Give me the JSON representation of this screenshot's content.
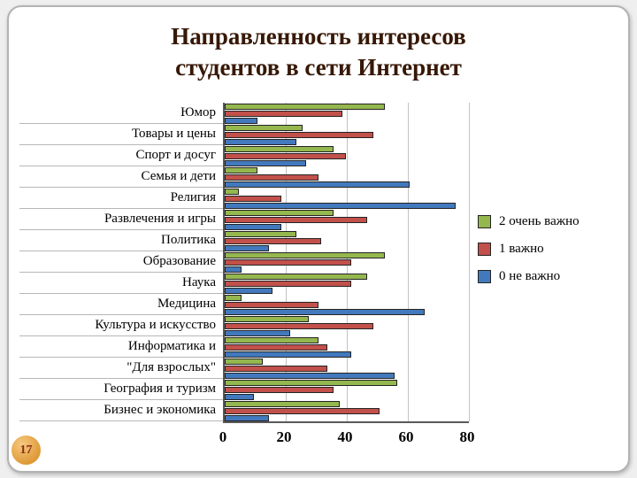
{
  "slide": {
    "title": "Направленность интересов студентов в сети Интернет",
    "page_number": "17"
  },
  "chart_data": {
    "type": "bar",
    "orientation": "horizontal",
    "title": "Направленность интересов студентов в сети Интернет",
    "categories": [
      "Юмор",
      "Товары и цены",
      "Спорт и досуг",
      "Семья и дети",
      "Религия",
      "Развлечения и игры",
      "Политика",
      "Образование",
      "Наука",
      "Медицина",
      "Культура и искусство",
      "Информатика и",
      "\"Для взрослых\"",
      "География и туризм",
      "Бизнес и экономика"
    ],
    "series": [
      {
        "name": "2 очень важно",
        "color": "#94B74E",
        "values": [
          52,
          25,
          35,
          10,
          4,
          35,
          23,
          52,
          46,
          5,
          27,
          30,
          12,
          56,
          37
        ]
      },
      {
        "name": "1 важно",
        "color": "#C2504B",
        "values": [
          38,
          48,
          39,
          30,
          18,
          46,
          31,
          41,
          41,
          30,
          48,
          33,
          33,
          35,
          50
        ]
      },
      {
        "name": "0 не важно",
        "color": "#4279BD",
        "values": [
          10,
          23,
          26,
          60,
          75,
          18,
          14,
          5,
          15,
          65,
          21,
          41,
          55,
          9,
          14
        ]
      }
    ],
    "x_ticks": [
      0,
      20,
      40,
      60,
      80
    ],
    "xlim": [
      0,
      80
    ],
    "grid": true,
    "legend_position": "right"
  }
}
